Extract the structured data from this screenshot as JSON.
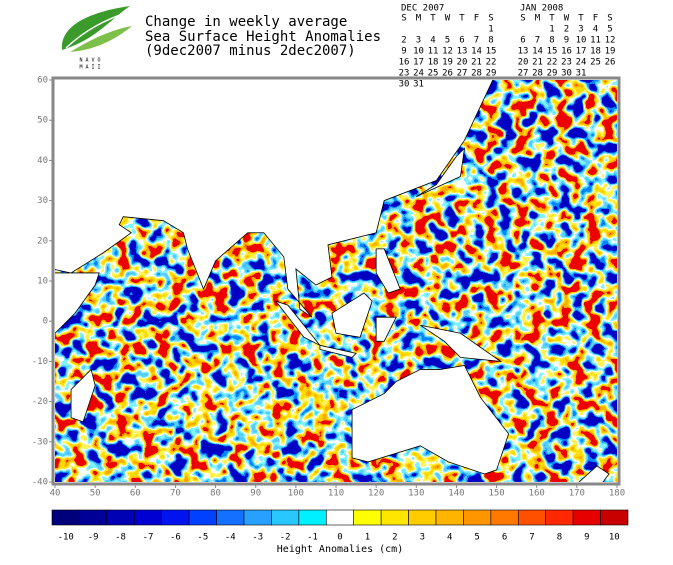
{
  "header": {
    "title_lines": [
      "Change in weekly average",
      "Sea Surface Height Anomalies",
      "(9dec2007 minus 2dec2007)"
    ],
    "logo_lines": [
      "N A V O",
      "M A I I"
    ]
  },
  "calendars": [
    {
      "title": "DEC 2007",
      "days": [
        "S",
        "M",
        "T",
        "W",
        "T",
        "F",
        "S"
      ],
      "weeks": [
        [
          null,
          null,
          null,
          null,
          null,
          null,
          "1"
        ],
        [
          "2",
          "3",
          "4",
          "5",
          "6",
          "7",
          "8"
        ],
        [
          "9",
          "10",
          "11",
          "12",
          "13",
          "14",
          "15"
        ],
        [
          "16",
          "17",
          "18",
          "19",
          "20",
          "21",
          "22"
        ],
        [
          "23",
          "24",
          "25",
          "26",
          "27",
          "28",
          "29"
        ],
        [
          "30",
          "31"
        ]
      ],
      "highlighted_weeks": [
        1,
        2
      ],
      "highlight_color": "#2020c0"
    },
    {
      "title": "JAN 2008",
      "days": [
        "S",
        "M",
        "T",
        "W",
        "T",
        "F",
        "S"
      ],
      "weeks": [
        [
          null,
          null,
          "1",
          "2",
          "3",
          "4",
          "5"
        ],
        [
          "6",
          "7",
          "8",
          "9",
          "10",
          "11",
          "12"
        ],
        [
          "13",
          "14",
          "15",
          "16",
          "17",
          "18",
          "19"
        ],
        [
          "20",
          "21",
          "22",
          "23",
          "24",
          "25",
          "26"
        ],
        [
          "27",
          "28",
          "29",
          "30",
          "31"
        ]
      ],
      "highlighted_weeks": [],
      "highlight_color": "#2020c0"
    }
  ],
  "map": {
    "xlim": [
      40,
      180
    ],
    "xticks": [
      40,
      50,
      60,
      70,
      80,
      90,
      100,
      110,
      120,
      130,
      140,
      150,
      160,
      170,
      180
    ],
    "ylim": [
      -40,
      60
    ],
    "yticks": [
      -40,
      -30,
      -20,
      -10,
      0,
      10,
      20,
      30,
      40,
      50,
      60
    ]
  },
  "colorbar": {
    "values": [
      -10,
      -9,
      -8,
      -7,
      -6,
      -5,
      -4,
      -3,
      -2,
      -1,
      0,
      1,
      2,
      3,
      4,
      5,
      6,
      7,
      8,
      9,
      10
    ],
    "colors": [
      "#00007a",
      "#000096",
      "#0000b4",
      "#0000d2",
      "#0014f0",
      "#0040ff",
      "#1470ff",
      "#28a0ff",
      "#28c8ff",
      "#00f0ff",
      "#ffffff",
      "#ffff00",
      "#ffe600",
      "#ffcc00",
      "#ffb400",
      "#ff9600",
      "#ff7800",
      "#ff5000",
      "#ff2800",
      "#e60000",
      "#c80000"
    ],
    "label": "Height Anomalies (cm)"
  }
}
